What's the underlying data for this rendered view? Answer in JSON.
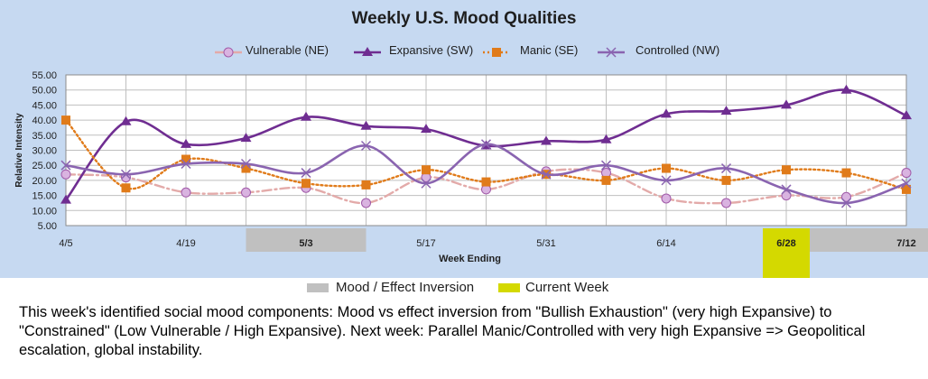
{
  "chart_data": {
    "type": "line",
    "title": "Weekly U.S. Mood Qualities",
    "xlabel": "Week Ending",
    "ylabel": "Relative Intensity",
    "ylim": [
      5,
      55
    ],
    "y_ticks": [
      "55.00",
      "50.00",
      "45.00",
      "40.00",
      "35.00",
      "30.00",
      "25.00",
      "20.00",
      "15.00",
      "10.00",
      "5.00"
    ],
    "x_ticks": [
      "4/5",
      "4/19",
      "5/3",
      "5/17",
      "5/31",
      "6/14",
      "6/28",
      "7/12"
    ],
    "categories": [
      "4/5",
      "4/12",
      "4/19",
      "4/26",
      "5/3",
      "5/10",
      "5/17",
      "5/24",
      "5/31",
      "6/7",
      "6/14",
      "6/21",
      "6/28",
      "7/5",
      "7/12"
    ],
    "grid": true,
    "legend_position": "top",
    "series": [
      {
        "name": "Vulnerable (NE)",
        "color": "#e3aaa9",
        "marker": "circle",
        "dash": "dash-dot",
        "values": [
          22,
          21,
          16,
          16,
          17.5,
          12.5,
          21,
          17,
          23,
          22.5,
          14,
          12.5,
          15,
          14.5,
          22.5
        ]
      },
      {
        "name": "Expansive (SW)",
        "color": "#6f2d91",
        "marker": "triangle",
        "dash": "solid",
        "values": [
          13.5,
          39.5,
          32,
          34,
          41,
          38,
          37,
          31.5,
          33,
          33.5,
          42,
          43,
          45,
          50,
          41.5
        ]
      },
      {
        "name": "Manic (SE)",
        "color": "#e07b1a",
        "marker": "square",
        "dash": "dotted",
        "values": [
          40,
          17.5,
          27,
          24,
          19,
          18.5,
          23.5,
          19.5,
          22,
          20,
          24,
          20,
          23.5,
          22.5,
          17
        ]
      },
      {
        "name": "Controlled (NW)",
        "color": "#8a64b0",
        "marker": "x",
        "dash": "solid",
        "values": [
          25,
          22,
          25.5,
          25.5,
          22.5,
          31.5,
          19,
          32,
          22,
          25,
          20,
          24,
          17,
          12.5,
          19
        ]
      }
    ],
    "inversion_weeks": [
      "5/3",
      "7/5",
      "7/12"
    ],
    "current_week": "6/28"
  },
  "bottom_legend": {
    "inversion_label": "Mood / Effect Inversion",
    "inversion_color": "#c0c0c0",
    "current_label": "Current Week",
    "current_color": "#d4d900"
  },
  "caption": "This week's identified social mood components: Mood vs effect inversion from \"Bullish Exhaustion\" (very high Expansive) to \"Constrained\" (Low Vulnerable / High Expansive).  Next week: Parallel Manic/Controlled with very high Expansive => Geopolitical escalation, global instability.",
  "colors": {
    "panel_background": "#c6d9f1",
    "plot_background": "#ffffff",
    "grid": "#bfbfbf"
  }
}
